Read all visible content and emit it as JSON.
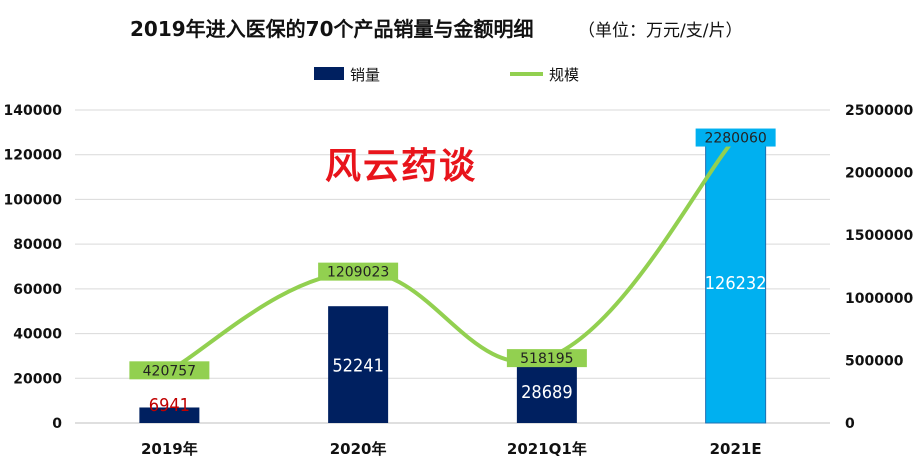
{
  "chart_data": {
    "type": "bar",
    "title": "2019年进入医保的70个产品销量与金额明细",
    "subtitle": "（单位：万元/支/片）",
    "watermark": "风云药谈",
    "categories": [
      "2019年",
      "2020年",
      "2021Q1年",
      "2021E"
    ],
    "series": [
      {
        "name": "销量",
        "type": "bar",
        "axis": "left",
        "values": [
          6941,
          52241,
          28689,
          126232
        ],
        "value_labels": [
          "6941",
          "52241",
          "28689",
          "126232"
        ],
        "colors": [
          "#002060",
          "#002060",
          "#002060",
          "#00b0f0"
        ],
        "label_colors": [
          "#c00000",
          "#ffffff",
          "#ffffff",
          "#ffffff"
        ]
      },
      {
        "name": "规模",
        "type": "line",
        "axis": "right",
        "values": [
          420757,
          1209023,
          518195,
          2280060
        ],
        "value_labels": [
          "420757",
          "1209023",
          "518195",
          "2280060"
        ],
        "color": "#92d050",
        "label_box_colors": [
          "#92d050",
          "#92d050",
          "#92d050",
          "#00b0f0"
        ]
      }
    ],
    "y_left": {
      "ylim": [
        0,
        140000
      ],
      "ticks": [
        "0",
        "20000",
        "40000",
        "60000",
        "80000",
        "100000",
        "120000",
        "140000"
      ]
    },
    "y_right": {
      "ylim": [
        0,
        2500000
      ],
      "ticks": [
        "0",
        "500000",
        "1000000",
        "1500000",
        "2000000",
        "2500000"
      ]
    },
    "grid": true,
    "legend_position": "top-center"
  }
}
